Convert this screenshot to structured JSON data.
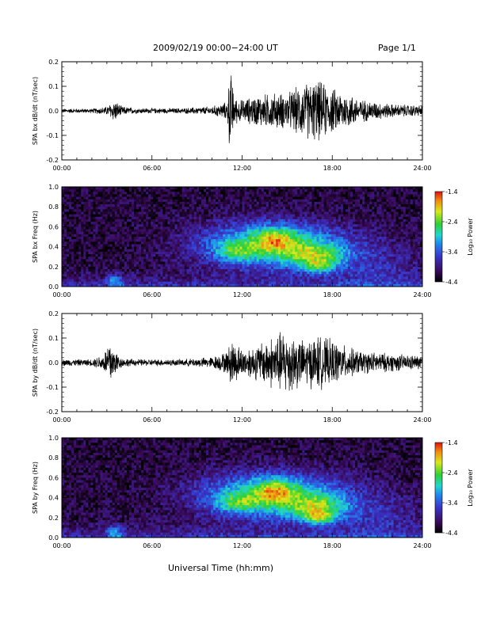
{
  "header": {
    "title": "2009/02/19  00:00−24:00 UT",
    "page": "Page 1/1"
  },
  "xlabel": "Universal Time (hh:mm)",
  "chart_data": [
    {
      "type": "line",
      "ylabel": "SPA bx dB/dt (nT/sec)",
      "xlim": [
        0,
        24
      ],
      "ylim": [
        -0.2,
        0.2
      ],
      "x_ticks": [
        "00:00",
        "06:00",
        "12:00",
        "18:00",
        "24:00"
      ],
      "y_ticks": [
        "0.2",
        "0.1",
        "0.0",
        "-0.1",
        "-0.2"
      ],
      "envelope": {
        "x_hours": [
          0,
          2,
          3,
          3.5,
          4,
          5,
          8,
          10,
          11,
          11.2,
          11.5,
          12,
          13,
          14,
          15,
          16,
          17,
          18,
          19,
          20,
          22,
          24
        ],
        "amplitude": [
          0.01,
          0.01,
          0.02,
          0.05,
          0.02,
          0.012,
          0.012,
          0.02,
          0.04,
          0.2,
          0.06,
          0.05,
          0.07,
          0.08,
          0.08,
          0.12,
          0.14,
          0.1,
          0.08,
          0.05,
          0.03,
          0.025
        ]
      },
      "line_color": "#000000"
    },
    {
      "type": "heatmap",
      "ylabel": "SPA bx Freq (Hz)",
      "xlim": [
        0,
        24
      ],
      "ylim": [
        0.0,
        1.0
      ],
      "x_ticks": [
        "00:00",
        "06:00",
        "12:00",
        "18:00",
        "24:00"
      ],
      "y_ticks": [
        "1.0",
        "0.8",
        "0.6",
        "0.4",
        "0.2",
        "0.0"
      ],
      "colorbar": {
        "label": "Log₁₀ Power",
        "range": [
          -4.4,
          -1.4
        ],
        "ticks": [
          "-1.4",
          "-2.4",
          "-3.4",
          "-4.4"
        ]
      }
    },
    {
      "type": "line",
      "ylabel": "SPA by dB/dt (nT/sec)",
      "xlim": [
        0,
        24
      ],
      "ylim": [
        -0.2,
        0.2
      ],
      "x_ticks": [
        "00:00",
        "06:00",
        "12:00",
        "18:00",
        "24:00"
      ],
      "y_ticks": [
        "0.2",
        "0.1",
        "0.0",
        "-0.1",
        "-0.2"
      ],
      "envelope": {
        "x_hours": [
          0,
          2,
          2.8,
          3.2,
          3.5,
          4,
          5,
          8,
          10,
          11,
          11.3,
          12,
          13,
          14,
          15,
          16,
          17,
          18,
          19,
          20,
          22,
          24
        ],
        "amplitude": [
          0.015,
          0.015,
          0.04,
          0.12,
          0.06,
          0.02,
          0.015,
          0.015,
          0.025,
          0.05,
          0.11,
          0.06,
          0.08,
          0.12,
          0.15,
          0.1,
          0.12,
          0.1,
          0.07,
          0.05,
          0.04,
          0.03
        ]
      },
      "line_color": "#000000"
    },
    {
      "type": "heatmap",
      "ylabel": "SPA by Freq (Hz)",
      "xlim": [
        0,
        24
      ],
      "ylim": [
        0.0,
        1.0
      ],
      "x_ticks": [
        "00:00",
        "06:00",
        "12:00",
        "18:00",
        "24:00"
      ],
      "y_ticks": [
        "1.0",
        "0.8",
        "0.6",
        "0.4",
        "0.2",
        "0.0"
      ],
      "colorbar": {
        "label": "Log₁₀ Power",
        "range": [
          -4.4,
          -1.4
        ],
        "ticks": [
          "-1.4",
          "-2.4",
          "-3.4",
          "-4.4"
        ]
      }
    }
  ]
}
